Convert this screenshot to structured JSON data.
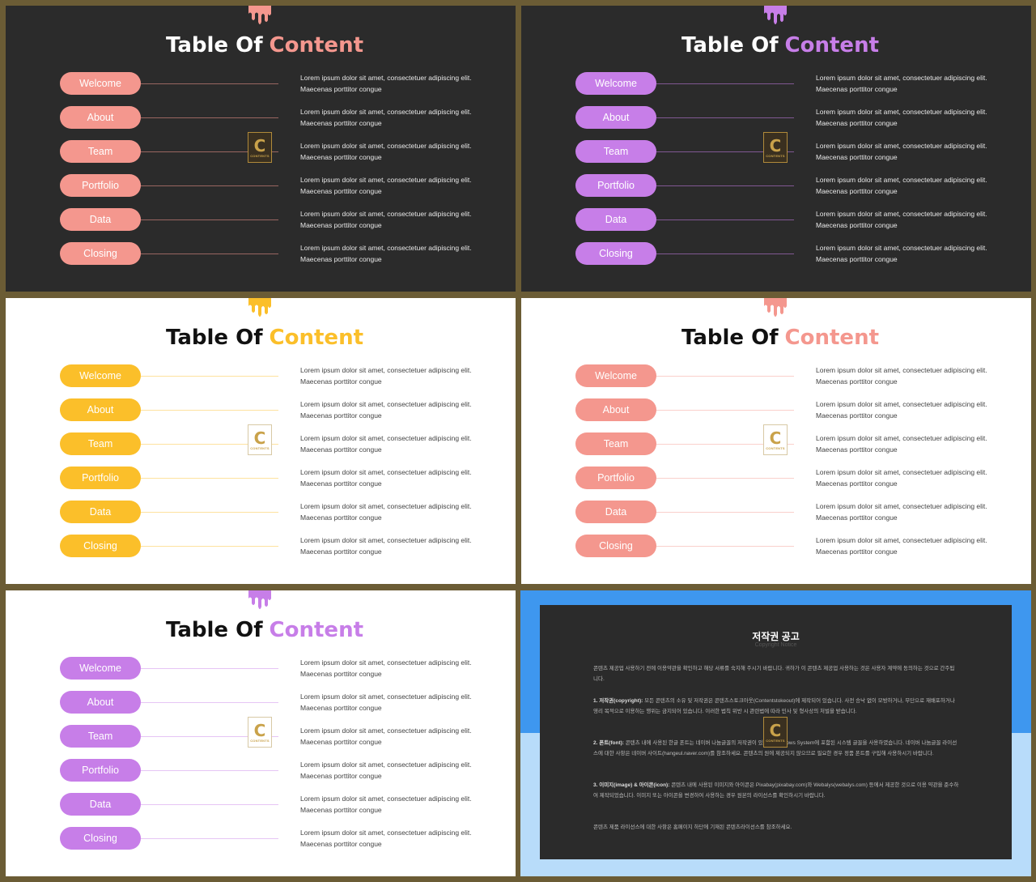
{
  "slides": [
    {
      "theme": "dark",
      "accent": "#f4978e",
      "title": {
        "part1": "Table Of",
        "part2": "Content"
      },
      "items": [
        {
          "label": "Welcome",
          "text": "Lorem ipsum dolor sit amet, consectetuer adipiscing elit. Maecenas porttitor congue"
        },
        {
          "label": "About",
          "text": "Lorem ipsum dolor sit amet, consectetuer adipiscing elit. Maecenas porttitor congue"
        },
        {
          "label": "Team",
          "text": "Lorem ipsum dolor sit amet, consectetuer adipiscing elit. Maecenas porttitor congue"
        },
        {
          "label": "Portfolio",
          "text": "Lorem ipsum dolor sit amet, consectetuer adipiscing elit. Maecenas porttitor congue"
        },
        {
          "label": "Data",
          "text": "Lorem ipsum dolor sit amet, consectetuer adipiscing elit. Maecenas porttitor congue"
        },
        {
          "label": "Closing",
          "text": "Lorem ipsum dolor sit amet, consectetuer adipiscing elit. Maecenas porttitor congue"
        }
      ],
      "logo": {
        "letter": "C",
        "text": "CONTENTS"
      }
    },
    {
      "theme": "dark",
      "accent": "#c77ee8",
      "title": {
        "part1": "Table Of",
        "part2": "Content"
      },
      "items": [
        {
          "label": "Welcome",
          "text": "Lorem ipsum dolor sit amet, consectetuer adipiscing elit. Maecenas porttitor congue"
        },
        {
          "label": "About",
          "text": "Lorem ipsum dolor sit amet, consectetuer adipiscing elit. Maecenas porttitor congue"
        },
        {
          "label": "Team",
          "text": "Lorem ipsum dolor sit amet, consectetuer adipiscing elit. Maecenas porttitor congue"
        },
        {
          "label": "Portfolio",
          "text": "Lorem ipsum dolor sit amet, consectetuer adipiscing elit. Maecenas porttitor congue"
        },
        {
          "label": "Data",
          "text": "Lorem ipsum dolor sit amet, consectetuer adipiscing elit. Maecenas porttitor congue"
        },
        {
          "label": "Closing",
          "text": "Lorem ipsum dolor sit amet, consectetuer adipiscing elit. Maecenas porttitor congue"
        }
      ],
      "logo": {
        "letter": "C",
        "text": "CONTENTS"
      }
    },
    {
      "theme": "light",
      "accent": "#fbbf2a",
      "title": {
        "part1": "Table Of",
        "part2": "Content"
      },
      "items": [
        {
          "label": "Welcome",
          "text": "Lorem ipsum dolor sit amet, consectetuer adipiscing elit. Maecenas porttitor congue"
        },
        {
          "label": "About",
          "text": "Lorem ipsum dolor sit amet, consectetuer adipiscing elit. Maecenas porttitor congue"
        },
        {
          "label": "Team",
          "text": "Lorem ipsum dolor sit amet, consectetuer adipiscing elit. Maecenas porttitor congue"
        },
        {
          "label": "Portfolio",
          "text": "Lorem ipsum dolor sit amet, consectetuer adipiscing elit. Maecenas porttitor congue"
        },
        {
          "label": "Data",
          "text": "Lorem ipsum dolor sit amet, consectetuer adipiscing elit. Maecenas porttitor congue"
        },
        {
          "label": "Closing",
          "text": "Lorem ipsum dolor sit amet, consectetuer adipiscing elit. Maecenas porttitor congue"
        }
      ],
      "logo": {
        "letter": "C",
        "text": "CONTENTS"
      }
    },
    {
      "theme": "light",
      "accent": "#f4978e",
      "title": {
        "part1": "Table Of",
        "part2": "Content"
      },
      "items": [
        {
          "label": "Welcome",
          "text": "Lorem ipsum dolor sit amet, consectetuer adipiscing elit. Maecenas porttitor congue"
        },
        {
          "label": "About",
          "text": "Lorem ipsum dolor sit amet, consectetuer adipiscing elit. Maecenas porttitor congue"
        },
        {
          "label": "Team",
          "text": "Lorem ipsum dolor sit amet, consectetuer adipiscing elit. Maecenas porttitor congue"
        },
        {
          "label": "Portfolio",
          "text": "Lorem ipsum dolor sit amet, consectetuer adipiscing elit. Maecenas porttitor congue"
        },
        {
          "label": "Data",
          "text": "Lorem ipsum dolor sit amet, consectetuer adipiscing elit. Maecenas porttitor congue"
        },
        {
          "label": "Closing",
          "text": "Lorem ipsum dolor sit amet, consectetuer adipiscing elit. Maecenas porttitor congue"
        }
      ],
      "logo": {
        "letter": "C",
        "text": "CONTENTS"
      }
    },
    {
      "theme": "light",
      "accent": "#c77ee8",
      "title": {
        "part1": "Table Of",
        "part2": "Content"
      },
      "items": [
        {
          "label": "Welcome",
          "text": "Lorem ipsum dolor sit amet, consectetuer adipiscing elit. Maecenas porttitor congue"
        },
        {
          "label": "About",
          "text": "Lorem ipsum dolor sit amet, consectetuer adipiscing elit. Maecenas porttitor congue"
        },
        {
          "label": "Team",
          "text": "Lorem ipsum dolor sit amet, consectetuer adipiscing elit. Maecenas porttitor congue"
        },
        {
          "label": "Portfolio",
          "text": "Lorem ipsum dolor sit amet, consectetuer adipiscing elit. Maecenas porttitor congue"
        },
        {
          "label": "Data",
          "text": "Lorem ipsum dolor sit amet, consectetuer adipiscing elit. Maecenas porttitor congue"
        },
        {
          "label": "Closing",
          "text": "Lorem ipsum dolor sit amet, consectetuer adipiscing elit. Maecenas porttitor congue"
        }
      ],
      "logo": {
        "letter": "C",
        "text": "CONTENTS"
      }
    }
  ],
  "copyright": {
    "title": "저작권 공고",
    "subtitle": "Copyright Notice",
    "intro": "콘텐츠 제공업 사용하기 전에 이용약관을 확인하고 해당 서류를 숙지해 주시기 바랍니다. 귀하가 이 콘텐츠 제공업 사용하는 것은 사용자 계약에 동의하는 것으로 간주됩니다.",
    "sections": [
      {
        "heading": "1. 저작권(copyright):",
        "text": "모든 콘텐츠의 소유 및 저작권은 콘텐츠스토크아웃(Contentstokeout)에 제작되어 있습니다. 사전 승낙 없이 모방하거나, 무단으로 재배포하거나 영리 목적으로 이용하는 행위는 금지되어 있습니다. 이러한 법칙 위반 시 관련법에 따라 민사 및 형사상의 처벌을 받습니다."
      },
      {
        "heading": "2. 폰트(font):",
        "text": "콘텐츠 내에 사용된 한글 폰트는 네이버 나눔글꼴의 저작권이 있으며 Windows System에 포함된 시스템 글꼴을 사용하였습니다. 네이버 나눔글꼴 라이선스에 대한 사항은 네이버 사이트(hangeul.naver.com)를 참조하세요. 콘텐츠의 원에 제공되지 않으므로 필요한 경우 정품 폰트를 구입해 사용하시기 바랍니다."
      },
      {
        "heading": "3. 이미지(image) & 아이콘(icon):",
        "text": "콘텐츠 내에 사용된 이미지와 아이콘은 Pixabay(pixabay.com)와 Webalys(webalys.com) 등에서 제공한 것으로 이용 약관을 준수하여 제작되었습니다. 이미지 또는 아이콘을 변경하여 사용하는 경우 원본의 라이선스를 확인하시기 바랍니다."
      }
    ],
    "footer": "콘텐츠 제품 라이선스에 대한 사항은 홈페이지 하단에 기재된 콘텐츠라이선스를 참조하세요.",
    "logo": {
      "letter": "C",
      "text": "CONTENTS"
    },
    "colors": {
      "band": "#3e97ef",
      "base": "#b8dcfa",
      "panel": "#2b2b2b"
    }
  }
}
